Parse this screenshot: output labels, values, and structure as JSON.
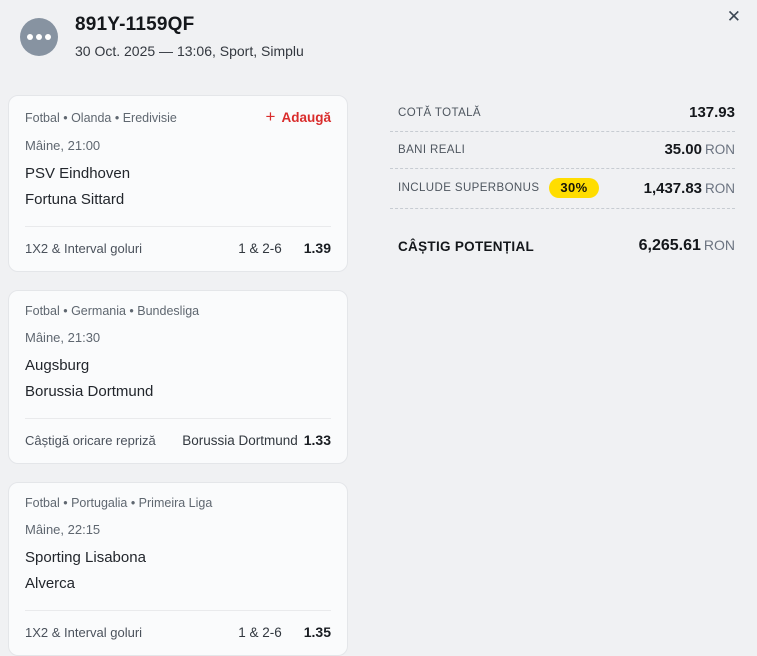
{
  "header": {
    "title": "891Y-1159QF",
    "subtitle": "30 Oct. 2025 — 13:06, Sport, Simplu",
    "status_icon": "ellipsis-icon",
    "close_icon": "✕"
  },
  "bets": [
    {
      "category": "Fotbal • Olanda • Eredivisie",
      "add_label": "Adaugă",
      "add_icon": "+",
      "time": "Mâine, 21:00",
      "home": "PSV Eindhoven",
      "away": "Fortuna Sittard",
      "market": "1X2 & Interval goluri",
      "selection": "1 & 2-6",
      "odds": "1.39"
    },
    {
      "category": "Fotbal • Germania • Bundesliga",
      "time": "Mâine, 21:30",
      "home": "Augsburg",
      "away": "Borussia Dortmund",
      "market": "Câștigă oricare repriză",
      "selection": "Borussia Dortmund",
      "odds": "1.33"
    },
    {
      "category": "Fotbal • Portugalia • Primeira Liga",
      "time": "Mâine, 22:15",
      "home": "Sporting Lisabona",
      "away": "Alverca",
      "market": "1X2 & Interval goluri",
      "selection": "1 & 2-6",
      "odds": "1.35"
    }
  ],
  "summary": {
    "total_odds": {
      "label": "COTĂ TOTALĂ",
      "value": "137.93",
      "currency": ""
    },
    "real_money": {
      "label": "BANI REALI",
      "value": "35.00",
      "currency": "RON"
    },
    "superbonus": {
      "label": "INCLUDE SUPERBONUS",
      "badge": "30%",
      "value": "1,437.83",
      "currency": "RON"
    },
    "potential": {
      "label": "CÂȘTIG POTENȚIAL",
      "value": "6,265.61",
      "currency": "RON"
    }
  },
  "colors": {
    "accent": "#d92c2c",
    "badge_bg": "#ffdd00",
    "avatar_bg": "#8793a1",
    "page_bg": "#f0f1f3"
  }
}
